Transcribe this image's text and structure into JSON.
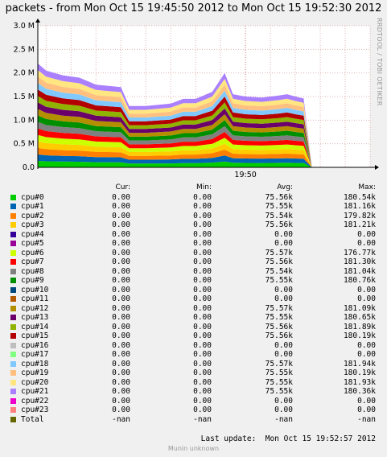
{
  "title": "packets - from Mon Oct 15 19:45:50 2012 to Mon Oct 15 19:52:30 2012",
  "side_label": "RRDTOOL / TOBI OETIKER",
  "columns": {
    "cur": "Cur:",
    "min": "Min:",
    "avg": "Avg:",
    "max": "Max:"
  },
  "legend": [
    {
      "name": "cpu#0",
      "color": "#00cc00",
      "cur": "0.00",
      "min": "0.00",
      "avg": "75.56k",
      "max": "180.54k"
    },
    {
      "name": "cpu#1",
      "color": "#0066b3",
      "cur": "0.00",
      "min": "0.00",
      "avg": "75.55k",
      "max": "181.16k"
    },
    {
      "name": "cpu#2",
      "color": "#ff8000",
      "cur": "0.00",
      "min": "0.00",
      "avg": "75.54k",
      "max": "179.82k"
    },
    {
      "name": "cpu#3",
      "color": "#ffcc00",
      "cur": "0.00",
      "min": "0.00",
      "avg": "75.56k",
      "max": "181.21k"
    },
    {
      "name": "cpu#4",
      "color": "#330099",
      "cur": "0.00",
      "min": "0.00",
      "avg": "0.00",
      "max": "0.00"
    },
    {
      "name": "cpu#5",
      "color": "#990099",
      "cur": "0.00",
      "min": "0.00",
      "avg": "0.00",
      "max": "0.00"
    },
    {
      "name": "cpu#6",
      "color": "#ccff00",
      "cur": "0.00",
      "min": "0.00",
      "avg": "75.57k",
      "max": "176.77k"
    },
    {
      "name": "cpu#7",
      "color": "#ff0000",
      "cur": "0.00",
      "min": "0.00",
      "avg": "75.56k",
      "max": "181.30k"
    },
    {
      "name": "cpu#8",
      "color": "#808080",
      "cur": "0.00",
      "min": "0.00",
      "avg": "75.54k",
      "max": "181.04k"
    },
    {
      "name": "cpu#9",
      "color": "#008f00",
      "cur": "0.00",
      "min": "0.00",
      "avg": "75.55k",
      "max": "180.76k"
    },
    {
      "name": "cpu#10",
      "color": "#00487d",
      "cur": "0.00",
      "min": "0.00",
      "avg": "0.00",
      "max": "0.00"
    },
    {
      "name": "cpu#11",
      "color": "#b35a00",
      "cur": "0.00",
      "min": "0.00",
      "avg": "0.00",
      "max": "0.00"
    },
    {
      "name": "cpu#12",
      "color": "#b38f00",
      "cur": "0.00",
      "min": "0.00",
      "avg": "75.57k",
      "max": "181.09k"
    },
    {
      "name": "cpu#13",
      "color": "#6b006b",
      "cur": "0.00",
      "min": "0.00",
      "avg": "75.55k",
      "max": "180.65k"
    },
    {
      "name": "cpu#14",
      "color": "#8fb300",
      "cur": "0.00",
      "min": "0.00",
      "avg": "75.56k",
      "max": "181.89k"
    },
    {
      "name": "cpu#15",
      "color": "#b30000",
      "cur": "0.00",
      "min": "0.00",
      "avg": "75.56k",
      "max": "180.19k"
    },
    {
      "name": "cpu#16",
      "color": "#bebebe",
      "cur": "0.00",
      "min": "0.00",
      "avg": "0.00",
      "max": "0.00"
    },
    {
      "name": "cpu#17",
      "color": "#80ff80",
      "cur": "0.00",
      "min": "0.00",
      "avg": "0.00",
      "max": "0.00"
    },
    {
      "name": "cpu#18",
      "color": "#80c9ff",
      "cur": "0.00",
      "min": "0.00",
      "avg": "75.57k",
      "max": "181.94k"
    },
    {
      "name": "cpu#19",
      "color": "#ffc080",
      "cur": "0.00",
      "min": "0.00",
      "avg": "75.55k",
      "max": "180.19k"
    },
    {
      "name": "cpu#20",
      "color": "#ffe680",
      "cur": "0.00",
      "min": "0.00",
      "avg": "75.55k",
      "max": "181.93k"
    },
    {
      "name": "cpu#21",
      "color": "#aa80ff",
      "cur": "0.00",
      "min": "0.00",
      "avg": "75.55k",
      "max": "180.36k"
    },
    {
      "name": "cpu#22",
      "color": "#ee00cc",
      "cur": "0.00",
      "min": "0.00",
      "avg": "0.00",
      "max": "0.00"
    },
    {
      "name": "cpu#23",
      "color": "#ff8080",
      "cur": "0.00",
      "min": "0.00",
      "avg": "0.00",
      "max": "0.00"
    },
    {
      "name": "Total",
      "color": "#666600",
      "cur": "-nan",
      "min": "-nan",
      "avg": "-nan",
      "max": "-nan"
    }
  ],
  "last_update": "Last update:  Mon Oct 15 19:52:57 2012",
  "footer": "Munin unknown",
  "chart_data": {
    "type": "area",
    "title": "packets - from Mon Oct 15 19:45:50 2012 to Mon Oct 15 19:52:30 2012",
    "stacked": true,
    "yticks": [
      "0.0",
      "0.5 M",
      "1.0 M",
      "1.5 M",
      "2.0 M",
      "2.5 M",
      "3.0 M"
    ],
    "ylim": [
      0,
      3000000
    ],
    "xticks": [
      {
        "label": "19:50",
        "time": "19:50:00"
      }
    ],
    "xlim": [
      "19:45:50",
      "19:52:30"
    ],
    "grid": true,
    "total_profile": {
      "x": [
        "19:45:50",
        "19:46:00",
        "19:46:20",
        "19:46:40",
        "19:47:00",
        "19:47:30",
        "19:47:40",
        "19:48:00",
        "19:48:30",
        "19:48:45",
        "19:49:00",
        "19:49:20",
        "19:49:35",
        "19:49:45",
        "19:50:00",
        "19:50:20",
        "19:50:40",
        "19:50:50",
        "19:51:00",
        "19:51:05",
        "19:51:10",
        "19:51:20"
      ],
      "y": [
        2200000,
        2050000,
        1950000,
        1900000,
        1750000,
        1700000,
        1300000,
        1300000,
        1350000,
        1450000,
        1450000,
        1600000,
        2000000,
        1550000,
        1500000,
        1480000,
        1520000,
        1550000,
        1500000,
        1480000,
        1460000,
        0
      ]
    },
    "series": [
      {
        "name": "cpu#0",
        "share": 1
      },
      {
        "name": "cpu#1",
        "share": 1
      },
      {
        "name": "cpu#2",
        "share": 1
      },
      {
        "name": "cpu#3",
        "share": 1
      },
      {
        "name": "cpu#6",
        "share": 1
      },
      {
        "name": "cpu#7",
        "share": 1
      },
      {
        "name": "cpu#8",
        "share": 1
      },
      {
        "name": "cpu#9",
        "share": 1
      },
      {
        "name": "cpu#12",
        "share": 1
      },
      {
        "name": "cpu#13",
        "share": 1
      },
      {
        "name": "cpu#14",
        "share": 1
      },
      {
        "name": "cpu#15",
        "share": 1
      },
      {
        "name": "cpu#18",
        "share": 1
      },
      {
        "name": "cpu#19",
        "share": 1
      },
      {
        "name": "cpu#20",
        "share": 1
      },
      {
        "name": "cpu#21",
        "share": 1
      }
    ]
  }
}
